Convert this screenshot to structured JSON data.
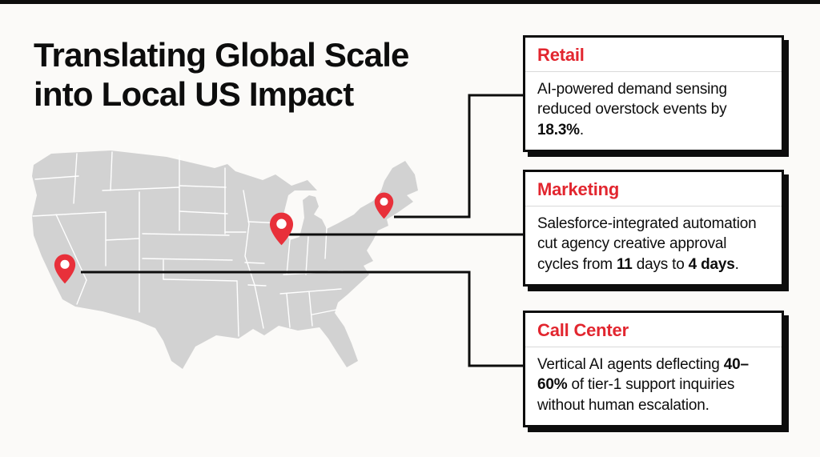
{
  "page": {
    "title_line1": "Translating Global Scale",
    "title_line2": "into Local US Impact"
  },
  "colors": {
    "accent_red": "#e2262f",
    "ink": "#0d0d0d",
    "map_gray": "#d2d2d2",
    "background": "#fbfaf8"
  },
  "map": {
    "description": "Gray silhouette map of the contiguous United States with white state borders",
    "pins": [
      {
        "id": "california",
        "icon": "location-pin-icon",
        "region": "california"
      },
      {
        "id": "midwest",
        "icon": "location-pin-icon",
        "region": "chicago-midwest"
      },
      {
        "id": "northeast",
        "icon": "location-pin-icon",
        "region": "northeast"
      }
    ]
  },
  "cards": [
    {
      "id": "retail",
      "title": "Retail",
      "body_segments": [
        {
          "text": "AI-powered demand sensing reduced overstock events by ",
          "bold": false
        },
        {
          "text": "18.3%",
          "bold": true
        },
        {
          "text": ".",
          "bold": false
        }
      ]
    },
    {
      "id": "marketing",
      "title": "Marketing",
      "body_segments": [
        {
          "text": "Salesforce-integrated automation cut agency creative approval cycles from ",
          "bold": false
        },
        {
          "text": "11",
          "bold": true
        },
        {
          "text": " days to ",
          "bold": false
        },
        {
          "text": "4 days",
          "bold": true
        },
        {
          "text": ".",
          "bold": false
        }
      ]
    },
    {
      "id": "call-center",
      "title": "Call Center",
      "body_segments": [
        {
          "text": "Vertical AI agents deflecting ",
          "bold": false
        },
        {
          "text": "40–60%",
          "bold": true
        },
        {
          "text": " of tier-1 support inquiries without human escalation.",
          "bold": false
        }
      ]
    }
  ]
}
